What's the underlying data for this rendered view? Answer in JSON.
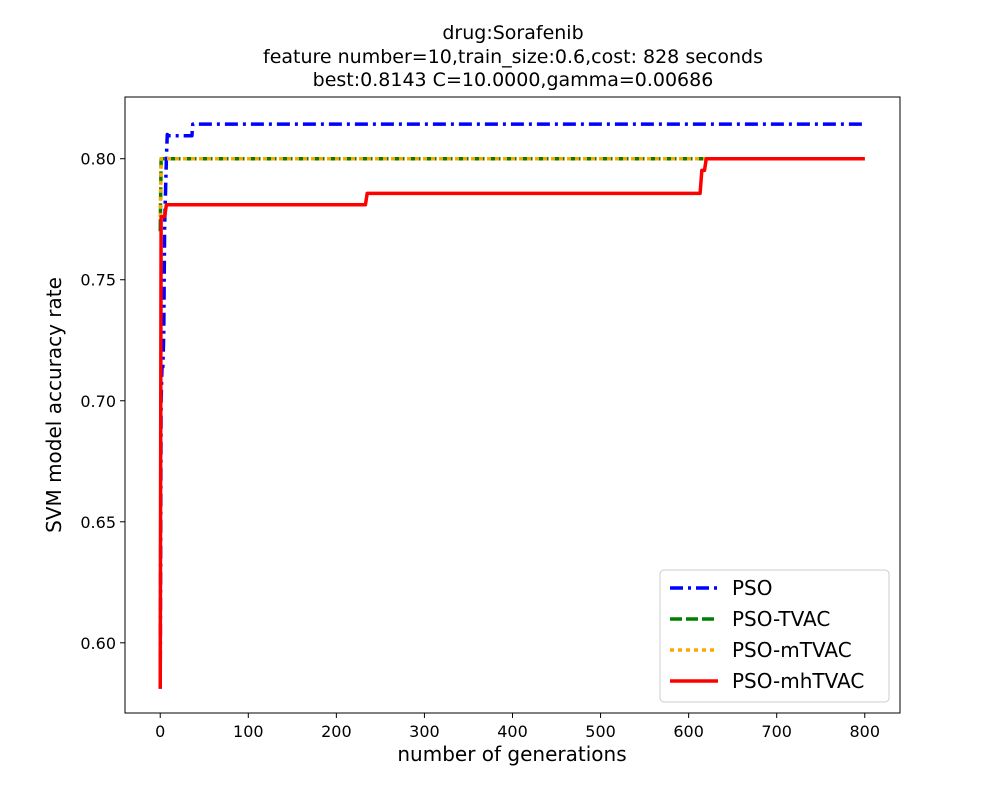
{
  "chart_data": {
    "type": "line",
    "title_lines": [
      "drug:Sorafenib",
      "feature number=10,train_size:0.6,cost: 828 seconds",
      "best:0.8143  C=10.0000,gamma=0.00686"
    ],
    "xlabel": "number of generations",
    "ylabel": "SVM model accuracy rate",
    "xlim": [
      -40,
      840
    ],
    "ylim": [
      0.571,
      0.8255
    ],
    "x_ticks": [
      0,
      100,
      200,
      300,
      400,
      500,
      600,
      700,
      800
    ],
    "x_tick_labels": [
      "0",
      "100",
      "200",
      "300",
      "400",
      "500",
      "600",
      "700",
      "800"
    ],
    "y_ticks": [
      0.6,
      0.65,
      0.7,
      0.75,
      0.8
    ],
    "y_tick_labels": [
      "0.60",
      "0.65",
      "0.70",
      "0.75",
      "0.80"
    ],
    "grid": false,
    "legend_position": "lower-right",
    "series": [
      {
        "name": "PSO",
        "color": "#0000ff",
        "style": "dashdot",
        "x": [
          0,
          1,
          2,
          3,
          4,
          5,
          6,
          7,
          8,
          10,
          20,
          30,
          36,
          37,
          40,
          100,
          200,
          300,
          400,
          500,
          600,
          700,
          800
        ],
        "y": [
          0.581,
          0.7,
          0.714,
          0.714,
          0.728,
          0.772,
          0.786,
          0.8,
          0.81,
          0.8095,
          0.8095,
          0.8095,
          0.8095,
          0.8143,
          0.8143,
          0.8143,
          0.8143,
          0.8143,
          0.8143,
          0.8143,
          0.8143,
          0.8143,
          0.8143
        ]
      },
      {
        "name": "PSO-TVAC",
        "color": "#008000",
        "style": "dashed",
        "x": [
          0,
          1,
          2,
          3,
          5,
          10,
          100,
          200,
          300,
          400,
          500,
          600,
          700,
          800
        ],
        "y": [
          0.77,
          0.8,
          0.8,
          0.8,
          0.8,
          0.8,
          0.8,
          0.8,
          0.8,
          0.8,
          0.8,
          0.8,
          0.8,
          0.8
        ]
      },
      {
        "name": "PSO-mTVAC",
        "color": "#ffa500",
        "style": "dotted",
        "x": [
          0,
          1,
          2,
          3,
          5,
          10,
          100,
          200,
          300,
          400,
          500,
          600,
          700,
          800
        ],
        "y": [
          0.776,
          0.8,
          0.8,
          0.8,
          0.8,
          0.8,
          0.8,
          0.8,
          0.8,
          0.8,
          0.8,
          0.8,
          0.8,
          0.8
        ]
      },
      {
        "name": "PSO-mhTVAC",
        "color": "#ff0000",
        "style": "solid",
        "x": [
          0,
          1,
          2,
          3,
          4,
          5,
          7,
          8,
          100,
          200,
          233,
          235,
          300,
          400,
          500,
          600,
          613,
          615,
          618,
          620,
          700,
          800
        ],
        "y": [
          0.581,
          0.776,
          0.776,
          0.776,
          0.776,
          0.776,
          0.781,
          0.781,
          0.781,
          0.781,
          0.781,
          0.7857,
          0.7857,
          0.7857,
          0.7857,
          0.7857,
          0.7857,
          0.7952,
          0.7952,
          0.8,
          0.8,
          0.8
        ]
      }
    ]
  }
}
